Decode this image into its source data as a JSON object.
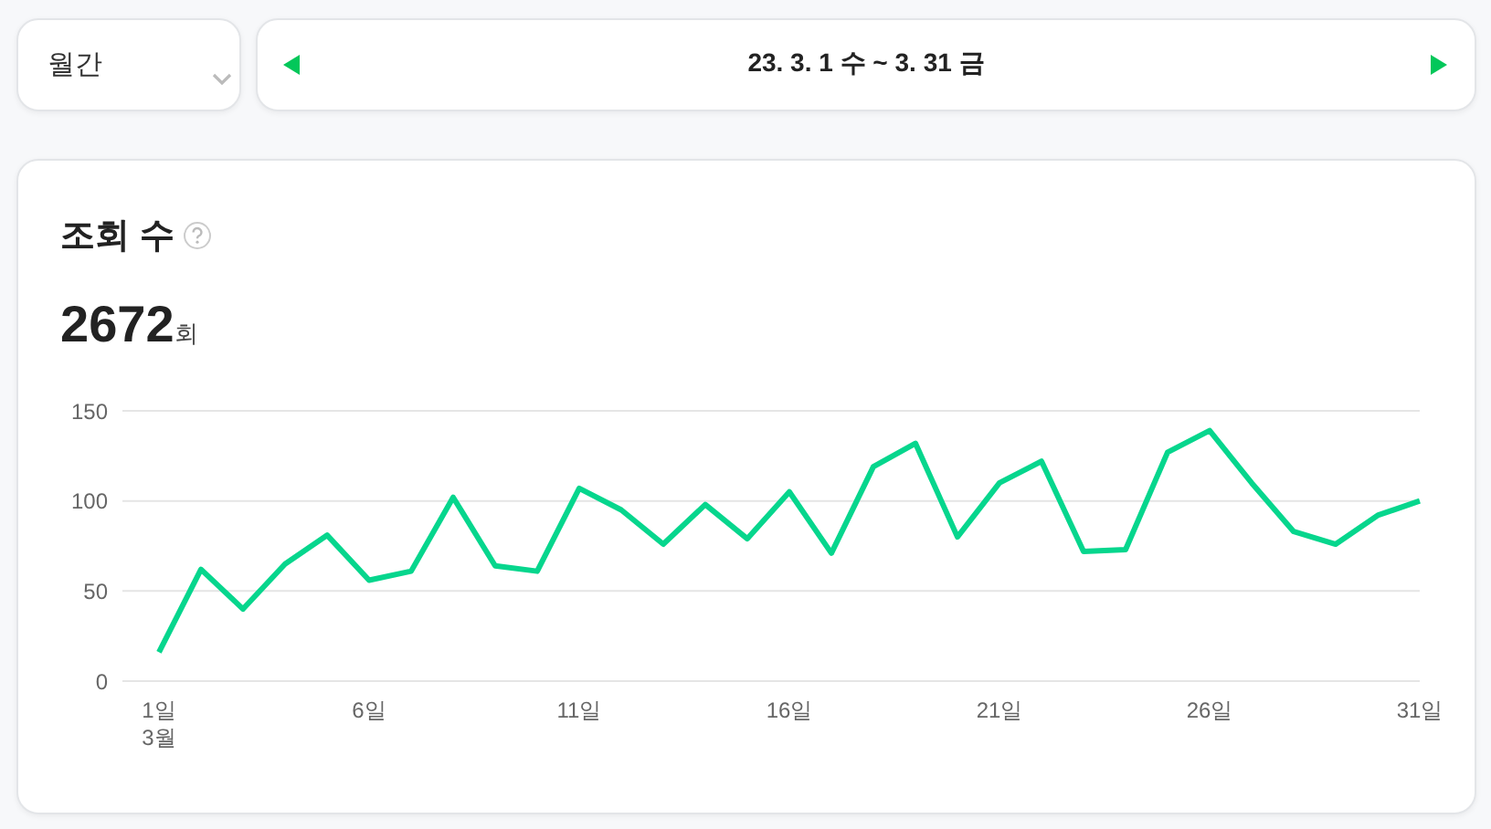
{
  "chart_data": {
    "type": "line",
    "title": "조회 수",
    "subtitle": "2672회",
    "annotations": [
      "월간",
      "23. 3. 1 수 ~ 3. 31 금",
      "3월"
    ],
    "categories": [
      "1일",
      null,
      null,
      null,
      null,
      "6일",
      null,
      null,
      null,
      null,
      "11일",
      null,
      null,
      null,
      null,
      "16일",
      null,
      null,
      null,
      null,
      "21일",
      null,
      null,
      null,
      null,
      "26일",
      null,
      null,
      null,
      null,
      "31일"
    ],
    "series": [
      {
        "color": "#06d68d",
        "values": [
          16,
          62,
          40,
          65,
          81,
          56,
          61,
          102,
          64,
          61,
          107,
          95,
          76,
          98,
          79,
          105,
          71,
          119,
          132,
          80,
          110,
          122,
          72,
          73,
          127,
          139,
          110,
          83,
          76,
          92,
          100
        ]
      }
    ],
    "ylim": [
      0,
      150
    ],
    "yticks": [
      0,
      50,
      100,
      150
    ],
    "grid": "y",
    "legend": false,
    "marker": "none",
    "line_style": "solid"
  }
}
